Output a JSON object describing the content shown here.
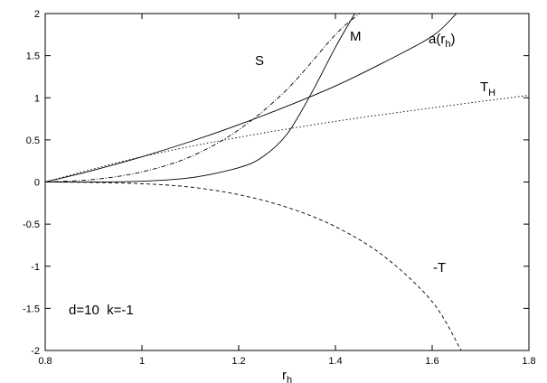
{
  "chart_data": {
    "type": "line",
    "xlabel": "r",
    "xlabel_sub": "h",
    "ylabel": "",
    "xlim": [
      0.8,
      1.8
    ],
    "ylim": [
      -2,
      2
    ],
    "xticks": [
      0.8,
      1,
      1.2,
      1.4,
      1.6,
      1.8
    ],
    "xtick_labels": [
      "0.8",
      "1",
      "1.2",
      "1.4",
      "1.6",
      "1.8"
    ],
    "yticks": [
      -2,
      -1.5,
      -1,
      -0.5,
      0,
      0.5,
      1,
      1.5,
      2
    ],
    "ytick_labels": [
      "-2",
      "-1.5",
      "-1",
      "-0.5",
      "0",
      "0.5",
      "1",
      "1.5",
      "2"
    ],
    "grid": false,
    "annotation": "d=10  k=-1",
    "series": [
      {
        "name": "S",
        "style": "dash-dot",
        "x": [
          0.8,
          0.9,
          1.0,
          1.1,
          1.2,
          1.3,
          1.4,
          1.45
        ],
        "y": [
          0.0,
          0.03,
          0.12,
          0.3,
          0.62,
          1.1,
          1.75,
          2.0
        ]
      },
      {
        "name": "M",
        "style": "solid",
        "x": [
          0.8,
          0.9,
          1.0,
          1.1,
          1.2,
          1.25,
          1.3,
          1.35,
          1.4,
          1.44
        ],
        "y": [
          0.0,
          0.0,
          0.01,
          0.05,
          0.17,
          0.3,
          0.57,
          1.05,
          1.6,
          2.0
        ]
      },
      {
        "name": "a(r",
        "name_sub": "h",
        "name_tail": ")",
        "style": "solid",
        "x": [
          0.8,
          0.9,
          1.0,
          1.1,
          1.2,
          1.3,
          1.4,
          1.5,
          1.6,
          1.65
        ],
        "y": [
          0.0,
          0.14,
          0.3,
          0.48,
          0.68,
          0.9,
          1.14,
          1.42,
          1.73,
          2.0
        ]
      },
      {
        "name": "T",
        "name_sub": "H",
        "style": "dotted",
        "x": [
          0.8,
          1.0,
          1.2,
          1.4,
          1.6,
          1.8
        ],
        "y": [
          0.0,
          0.3,
          0.53,
          0.72,
          0.88,
          1.03
        ]
      },
      {
        "name": "-T",
        "style": "dashed",
        "x": [
          0.8,
          0.9,
          1.0,
          1.1,
          1.2,
          1.3,
          1.4,
          1.5,
          1.6,
          1.66
        ],
        "y": [
          0.0,
          -0.005,
          -0.02,
          -0.06,
          -0.15,
          -0.3,
          -0.53,
          -0.88,
          -1.42,
          -2.0
        ]
      }
    ]
  }
}
